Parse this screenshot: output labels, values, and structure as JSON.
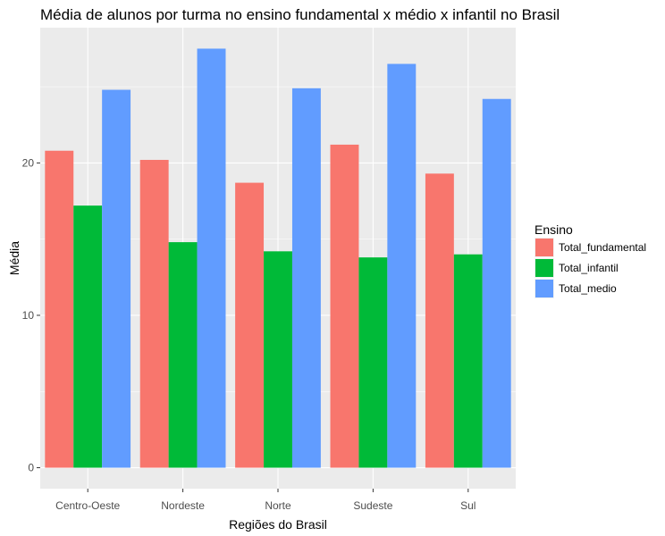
{
  "chart_data": {
    "type": "bar",
    "title": "Média de alunos por turma no ensino fundamental x médio x infantil no Brasil",
    "xlabel": "Regiões do Brasil",
    "ylabel": "Média",
    "categories": [
      "Centro-Oeste",
      "Nordeste",
      "Norte",
      "Sudeste",
      "Sul"
    ],
    "series": [
      {
        "name": "Total_fundamental",
        "color": "#F8766D",
        "values": [
          20.8,
          20.2,
          18.7,
          21.2,
          19.3
        ]
      },
      {
        "name": "Total_infantil",
        "color": "#00BA38",
        "values": [
          17.2,
          14.8,
          14.2,
          13.8,
          14.0
        ]
      },
      {
        "name": "Total_medio",
        "color": "#619CFF",
        "values": [
          24.8,
          27.5,
          24.9,
          26.5,
          24.2
        ]
      }
    ],
    "ylim": [
      -1.375,
      28.875
    ],
    "yticks": [
      0,
      10,
      20
    ],
    "ytick_labels": [
      "0",
      "10",
      "20"
    ],
    "legend": {
      "title": "Ensino",
      "position": "right"
    },
    "grid": true,
    "panel_color": "#EBEBEB"
  }
}
